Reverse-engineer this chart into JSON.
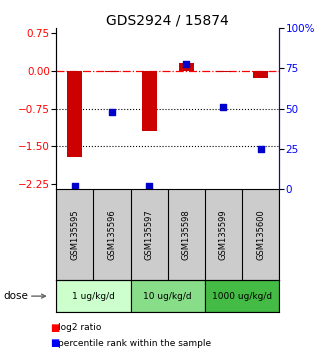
{
  "title": "GDS2924 / 15874",
  "samples": [
    "GSM135595",
    "GSM135596",
    "GSM135597",
    "GSM135598",
    "GSM135599",
    "GSM135600"
  ],
  "log2_ratio": [
    -1.72,
    -0.02,
    -1.2,
    0.15,
    -0.02,
    -0.15
  ],
  "percentile_rank": [
    2,
    48,
    2,
    78,
    51,
    25
  ],
  "ylim_left": [
    -2.35,
    0.85
  ],
  "ylim_right": [
    0,
    100
  ],
  "yticks_left": [
    0.75,
    0,
    -0.75,
    -1.5,
    -2.25
  ],
  "yticks_right": [
    100,
    75,
    50,
    25,
    0
  ],
  "ytick_labels_right": [
    "100%",
    "75",
    "50",
    "25",
    "0"
  ],
  "hline_y": 0,
  "dotted_lines": [
    -0.75,
    -1.5
  ],
  "bar_color": "#cc0000",
  "dot_color": "#0000cc",
  "dose_groups": [
    {
      "label": "1 ug/kg/d",
      "start": 0,
      "end": 2,
      "color": "#ccffcc"
    },
    {
      "label": "10 ug/kg/d",
      "start": 2,
      "end": 4,
      "color": "#88dd88"
    },
    {
      "label": "1000 ug/kg/d",
      "start": 4,
      "end": 6,
      "color": "#44bb44"
    }
  ],
  "legend_red": "log2 ratio",
  "legend_blue": "percentile rank within the sample",
  "bar_width": 0.4,
  "dot_size": 25,
  "sample_bg": "#cccccc",
  "dose_label": "dose"
}
